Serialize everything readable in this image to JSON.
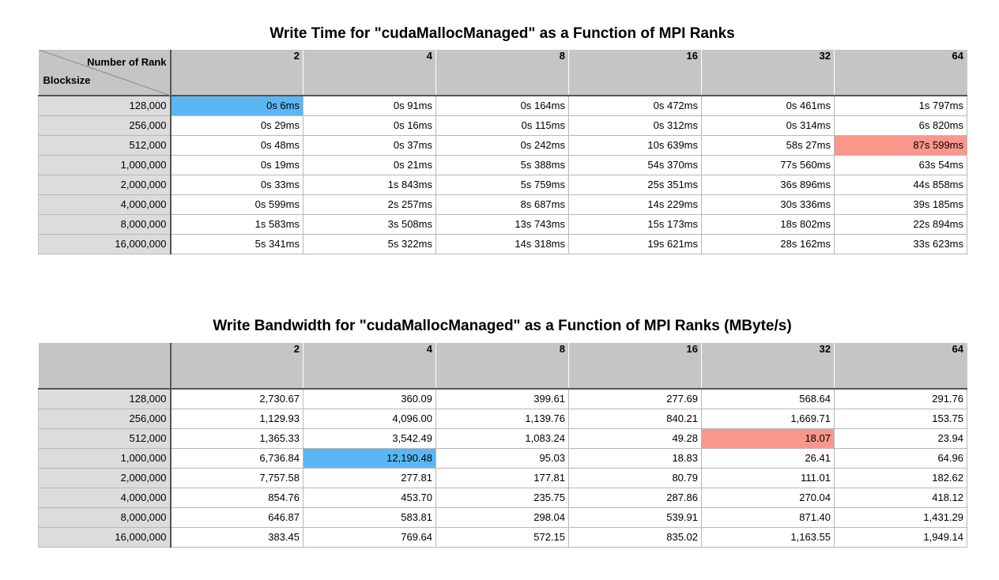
{
  "table1": {
    "title": "Write Time for \"cudaMallocManaged\" as a Function of MPI Ranks",
    "corner_top": "Number of Rank",
    "corner_bottom": "Blocksize",
    "columns": [
      "2",
      "4",
      "8",
      "16",
      "32",
      "64"
    ],
    "rows": [
      {
        "label": "128,000",
        "cells": [
          "0s 6ms",
          "0s 91ms",
          "0s 164ms",
          "0s 472ms",
          "0s 461ms",
          "1s 797ms"
        ]
      },
      {
        "label": "256,000",
        "cells": [
          "0s 29ms",
          "0s 16ms",
          "0s 115ms",
          "0s 312ms",
          "0s 314ms",
          "6s 820ms"
        ]
      },
      {
        "label": "512,000",
        "cells": [
          "0s 48ms",
          "0s 37ms",
          "0s 242ms",
          "10s 639ms",
          "58s 27ms",
          "87s 599ms"
        ]
      },
      {
        "label": "1,000,000",
        "cells": [
          "0s 19ms",
          "0s 21ms",
          "5s 388ms",
          "54s 370ms",
          "77s 560ms",
          "63s 54ms"
        ]
      },
      {
        "label": "2,000,000",
        "cells": [
          "0s 33ms",
          "1s 843ms",
          "5s 759ms",
          "25s 351ms",
          "36s 896ms",
          "44s 858ms"
        ]
      },
      {
        "label": "4,000,000",
        "cells": [
          "0s 599ms",
          "2s 257ms",
          "8s 687ms",
          "14s 229ms",
          "30s 336ms",
          "39s 185ms"
        ]
      },
      {
        "label": "8,000,000",
        "cells": [
          "1s 583ms",
          "3s 508ms",
          "13s 743ms",
          "15s 173ms",
          "18s 802ms",
          "22s 894ms"
        ]
      },
      {
        "label": "16,000,000",
        "cells": [
          "5s 341ms",
          "5s 322ms",
          "14s 318ms",
          "19s 621ms",
          "28s 162ms",
          "33s 623ms"
        ]
      }
    ],
    "highlights": [
      {
        "row": 0,
        "col": 0,
        "color": "#5ab7f4"
      },
      {
        "row": 2,
        "col": 5,
        "color": "#f9978d"
      }
    ]
  },
  "table2": {
    "title": "Write Bandwidth for \"cudaMallocManaged\" as a Function of MPI Ranks (MByte/s)",
    "columns": [
      "2",
      "4",
      "8",
      "16",
      "32",
      "64"
    ],
    "rows": [
      {
        "label": "128,000",
        "cells": [
          "2,730.67",
          "360.09",
          "399.61",
          "277.69",
          "568.64",
          "291.76"
        ]
      },
      {
        "label": "256,000",
        "cells": [
          "1,129.93",
          "4,096.00",
          "1,139.76",
          "840.21",
          "1,669.71",
          "153.75"
        ]
      },
      {
        "label": "512,000",
        "cells": [
          "1,365.33",
          "3,542.49",
          "1,083.24",
          "49.28",
          "18.07",
          "23.94"
        ]
      },
      {
        "label": "1,000,000",
        "cells": [
          "6,736.84",
          "12,190.48",
          "95.03",
          "18.83",
          "26.41",
          "64.96"
        ]
      },
      {
        "label": "2,000,000",
        "cells": [
          "7,757.58",
          "277.81",
          "177.81",
          "80.79",
          "111.01",
          "182.62"
        ]
      },
      {
        "label": "4,000,000",
        "cells": [
          "854.76",
          "453.70",
          "235.75",
          "287.86",
          "270.04",
          "418.12"
        ]
      },
      {
        "label": "8,000,000",
        "cells": [
          "646.87",
          "583.81",
          "298.04",
          "539.91",
          "871.40",
          "1,431.29"
        ]
      },
      {
        "label": "16,000,000",
        "cells": [
          "383.45",
          "769.64",
          "572.15",
          "835.02",
          "1,163.55",
          "1,949.14"
        ]
      }
    ],
    "highlights": [
      {
        "row": 3,
        "col": 1,
        "color": "#5ab7f4"
      },
      {
        "row": 2,
        "col": 4,
        "color": "#f9978d"
      }
    ]
  }
}
